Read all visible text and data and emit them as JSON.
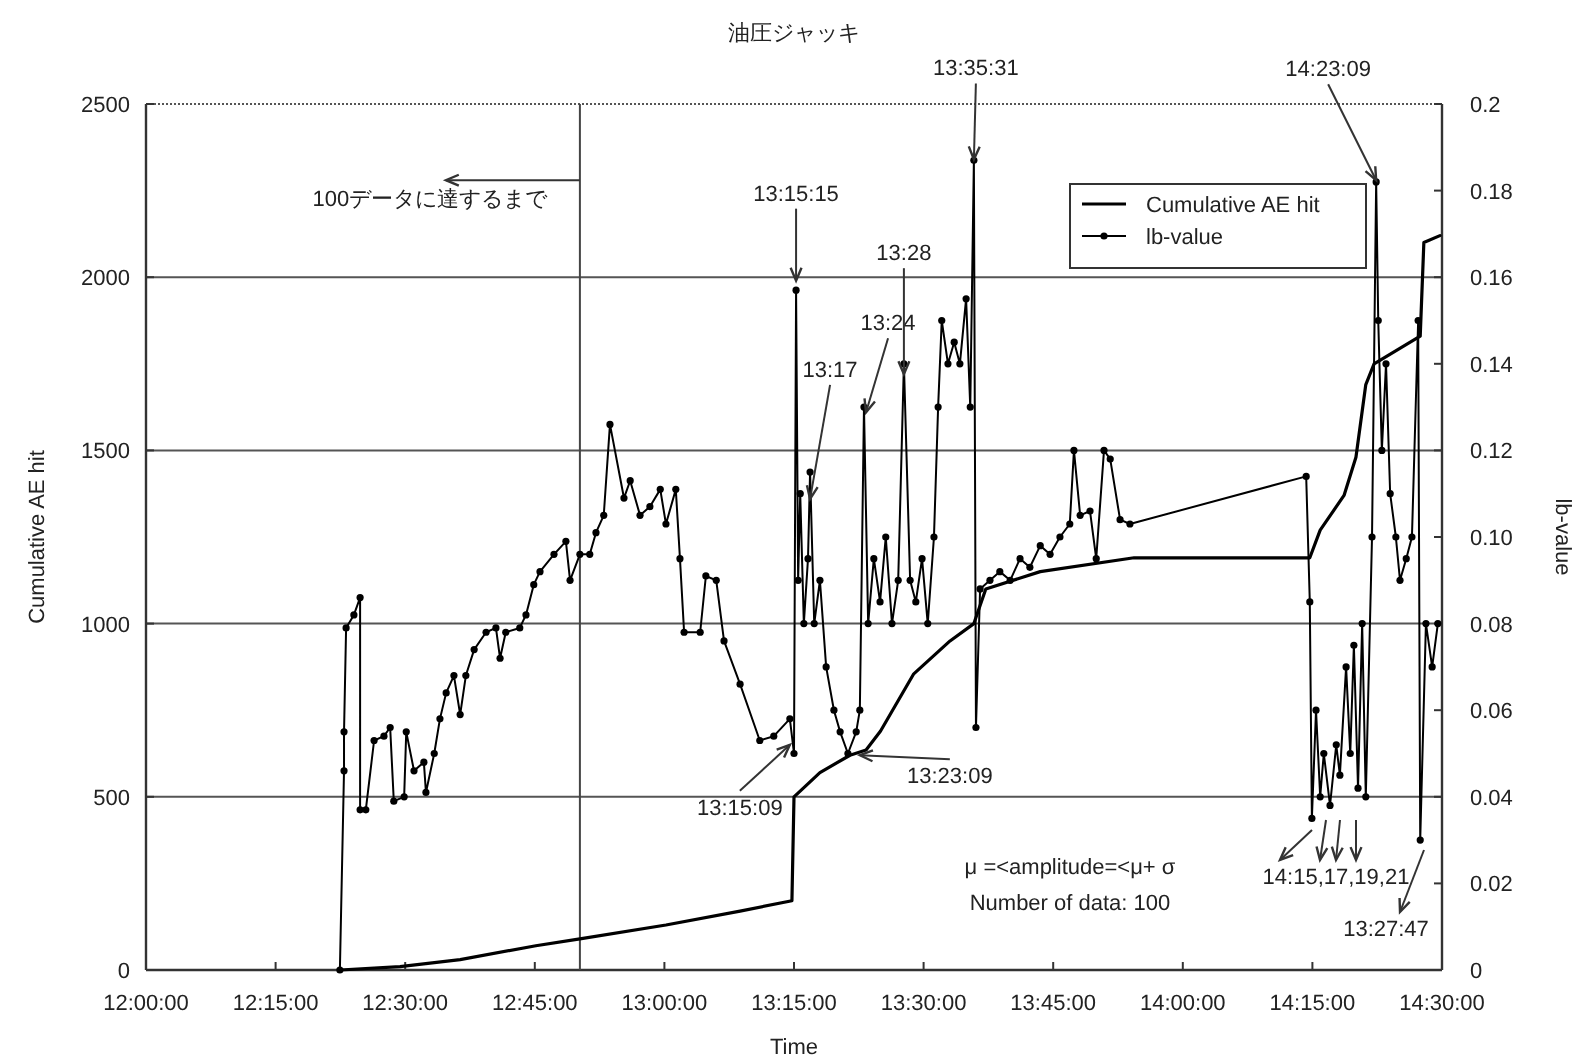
{
  "chart_data": {
    "type": "line",
    "title": "油圧ジャッキ",
    "xlabel": "Time",
    "ylabel": "Cumulative AE hit",
    "y2label": "lb-value",
    "xlim": [
      12,
      14.5
    ],
    "xticks": [
      {
        "value": 12,
        "label": "12:00:00"
      },
      {
        "value": 12.25,
        "label": "12:15:00"
      },
      {
        "value": 12.5,
        "label": "12:30:00"
      },
      {
        "value": 12.75,
        "label": "12:45:00"
      },
      {
        "value": 13,
        "label": "13:00:00"
      },
      {
        "value": 13.25,
        "label": "13:15:00"
      },
      {
        "value": 13.5,
        "label": "13:30:00"
      },
      {
        "value": 13.75,
        "label": "13:45:00"
      },
      {
        "value": 14,
        "label": "14:00:00"
      },
      {
        "value": 14.25,
        "label": "14:15:00"
      },
      {
        "value": 14.5,
        "label": "14:30:00"
      }
    ],
    "ylim": [
      0,
      2500
    ],
    "yticks": [
      0,
      500,
      1000,
      1500,
      2000,
      2500
    ],
    "y2lim": [
      0,
      0.2
    ],
    "y2ticks": [
      0,
      0.02,
      0.04,
      0.06,
      0.08,
      {
        "value": 0.1,
        "label": "0.10"
      },
      0.12,
      0.14,
      0.16,
      0.18,
      0.2
    ],
    "grid": "y",
    "legend": "top right",
    "ref_lines": [
      {
        "axis": "x",
        "value": 12.837,
        "label": null
      }
    ],
    "series": [
      {
        "name": "Cumulative AE hit",
        "color": "#000000",
        "marker": "none",
        "x": [
          12.374,
          12.49,
          12.606,
          12.752,
          12.837,
          13.003,
          13.146,
          13.246,
          13.25,
          13.3,
          13.358,
          13.389,
          13.417,
          13.481,
          13.551,
          13.597,
          13.62,
          13.725,
          13.906,
          14.245,
          14.265,
          14.311,
          14.334,
          14.353,
          14.369,
          14.458,
          14.465,
          14.496
        ],
        "values": [
          0,
          10,
          30,
          70,
          90,
          130,
          170,
          200,
          500,
          570,
          620,
          635,
          690,
          855,
          950,
          1000,
          1100,
          1150,
          1190,
          1190,
          1270,
          1370,
          1480,
          1690,
          1750,
          1830,
          2100,
          2120
        ]
      },
      {
        "name": "lb-value",
        "color": "#000000",
        "marker": "circle",
        "axis": "y2",
        "x": [
          12.374,
          12.382,
          12.382,
          12.386,
          12.401,
          12.413,
          12.413,
          12.424,
          12.44,
          12.459,
          12.471,
          12.478,
          12.498,
          12.502,
          12.517,
          12.536,
          12.54,
          12.556,
          12.567,
          12.579,
          12.594,
          12.606,
          12.617,
          12.633,
          12.656,
          12.675,
          12.683,
          12.694,
          12.721,
          12.733,
          12.748,
          12.76,
          12.787,
          12.81,
          12.818,
          12.837,
          12.856,
          12.868,
          12.883,
          12.895,
          12.922,
          12.934,
          12.953,
          12.972,
          12.992,
          13.003,
          13.022,
          13.03,
          13.038,
          13.069,
          13.08,
          13.1,
          13.115,
          13.146,
          13.184,
          13.211,
          13.242,
          13.25,
          13.254,
          13.258,
          13.262,
          13.269,
          13.277,
          13.281,
          13.289,
          13.3,
          13.312,
          13.327,
          13.339,
          13.354,
          13.37,
          13.377,
          13.385,
          13.393,
          13.404,
          13.416,
          13.427,
          13.439,
          13.451,
          13.462,
          13.474,
          13.485,
          13.497,
          13.508,
          13.52,
          13.528,
          13.535,
          13.547,
          13.559,
          13.57,
          13.582,
          13.59,
          13.597,
          13.601,
          13.609,
          13.628,
          13.647,
          13.667,
          13.686,
          13.705,
          13.725,
          13.744,
          13.763,
          13.782,
          13.79,
          13.802,
          13.821,
          13.833,
          13.848,
          13.86,
          13.879,
          13.898,
          14.238,
          14.245,
          14.249,
          14.257,
          14.265,
          14.272,
          14.284,
          14.296,
          14.303,
          14.315,
          14.323,
          14.33,
          14.338,
          14.346,
          14.353,
          14.365,
          14.373,
          14.377,
          14.384,
          14.392,
          14.4,
          14.411,
          14.419,
          14.431,
          14.442,
          14.454,
          14.458,
          14.469,
          14.481,
          14.492
        ],
        "values": [
          0,
          0.046,
          0.055,
          0.079,
          0.082,
          0.086,
          0.037,
          0.037,
          0.053,
          0.054,
          0.056,
          0.039,
          0.04,
          0.055,
          0.046,
          0.048,
          0.041,
          0.05,
          0.058,
          0.064,
          0.068,
          0.059,
          0.068,
          0.074,
          0.078,
          0.079,
          0.072,
          0.078,
          0.079,
          0.082,
          0.089,
          0.092,
          0.096,
          0.099,
          0.09,
          0.096,
          0.096,
          0.101,
          0.105,
          0.126,
          0.109,
          0.113,
          0.105,
          0.107,
          0.111,
          0.103,
          0.111,
          0.095,
          0.078,
          0.078,
          0.091,
          0.09,
          0.076,
          0.066,
          0.053,
          0.054,
          0.058,
          0.05,
          0.157,
          0.09,
          0.11,
          0.08,
          0.095,
          0.115,
          0.08,
          0.09,
          0.07,
          0.06,
          0.055,
          0.05,
          0.055,
          0.06,
          0.13,
          0.08,
          0.095,
          0.085,
          0.1,
          0.08,
          0.09,
          0.14,
          0.09,
          0.085,
          0.095,
          0.08,
          0.1,
          0.13,
          0.15,
          0.14,
          0.145,
          0.14,
          0.155,
          0.13,
          0.187,
          0.056,
          0.088,
          0.09,
          0.092,
          0.09,
          0.095,
          0.093,
          0.098,
          0.096,
          0.1,
          0.103,
          0.12,
          0.105,
          0.106,
          0.095,
          0.12,
          0.118,
          0.104,
          0.103,
          0.114,
          0.085,
          0.035,
          0.06,
          0.04,
          0.05,
          0.038,
          0.052,
          0.045,
          0.07,
          0.05,
          0.075,
          0.042,
          0.08,
          0.04,
          0.1,
          0.182,
          0.15,
          0.12,
          0.14,
          0.11,
          0.1,
          0.09,
          0.095,
          0.1,
          0.15,
          0.03,
          0.08,
          0.07,
          0.08
        ]
      }
    ],
    "annotations": [
      {
        "text": "100データに達するまで",
        "x": 12.837,
        "y": 2280
      },
      {
        "text": "13:15:15",
        "x": 13.254,
        "y": 1990
      },
      {
        "text": "13:17",
        "x": 13.281,
        "y": 1360
      },
      {
        "text": "13:24",
        "x": 13.389,
        "y": 1610
      },
      {
        "text": "13:28",
        "x": 13.462,
        "y": 1720
      },
      {
        "text": "13:35:31",
        "x": 13.597,
        "y": 2340
      },
      {
        "text": "14:23:09",
        "x": 14.373,
        "y": 2280
      },
      {
        "text": "13:15:09",
        "x": 13.242,
        "y": 650
      },
      {
        "text": "13:23:09",
        "x": 13.377,
        "y": 620
      },
      "14:15,17,19,21",
      "13:27:47",
      "μ =<amplitude=<μ+ σ",
      "Number of data: 100"
    ]
  }
}
